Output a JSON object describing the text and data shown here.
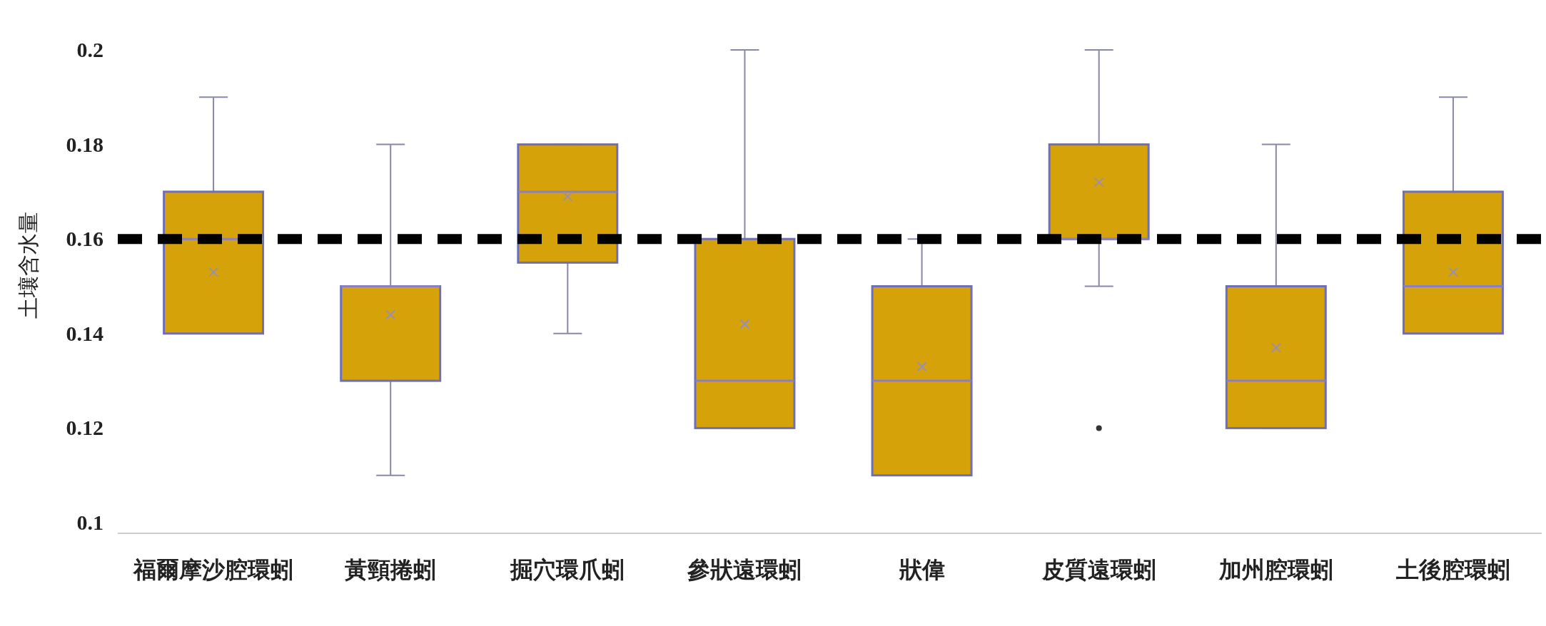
{
  "chart_data": {
    "type": "box",
    "ylabel": "土壤含水量",
    "categories": [
      "福爾摩沙腔環蚓",
      "黃頸捲蚓",
      "掘穴環爪蚓",
      "參狀遠環蚓",
      "狀偉",
      "皮質遠環蚓",
      "加州腔環蚓",
      "土後腔環蚓"
    ],
    "boxes": [
      {
        "low": 0.14,
        "q1": 0.14,
        "median": 0.16,
        "q3": 0.17,
        "high": 0.19,
        "mean": 0.153
      },
      {
        "low": 0.11,
        "q1": 0.13,
        "median": 0.15,
        "q3": 0.15,
        "high": 0.18,
        "mean": 0.144
      },
      {
        "low": 0.14,
        "q1": 0.155,
        "median": 0.17,
        "q3": 0.18,
        "high": 0.18,
        "mean": 0.169
      },
      {
        "low": 0.12,
        "q1": 0.12,
        "median": 0.13,
        "q3": 0.16,
        "high": 0.2,
        "mean": 0.142
      },
      {
        "low": 0.11,
        "q1": 0.11,
        "median": 0.13,
        "q3": 0.15,
        "high": 0.16,
        "mean": 0.133
      },
      {
        "low": 0.15,
        "q1": 0.16,
        "median": 0.16,
        "q3": 0.18,
        "high": 0.2,
        "mean": 0.172,
        "outliers": [
          0.12
        ]
      },
      {
        "low": 0.12,
        "q1": 0.12,
        "median": 0.13,
        "q3": 0.15,
        "high": 0.18,
        "mean": 0.137
      },
      {
        "low": 0.14,
        "q1": 0.14,
        "median": 0.15,
        "q3": 0.17,
        "high": 0.19,
        "mean": 0.153
      }
    ],
    "color": "#d6a20a",
    "ylim": [
      0.1,
      0.2
    ],
    "yticks": [
      0.1,
      0.12,
      0.14,
      0.16,
      0.18,
      0.2
    ],
    "ref_lines": [
      {
        "axis": "y",
        "value": 0.16,
        "color": "#000000",
        "line_style": "dashed"
      }
    ],
    "grid": false
  }
}
